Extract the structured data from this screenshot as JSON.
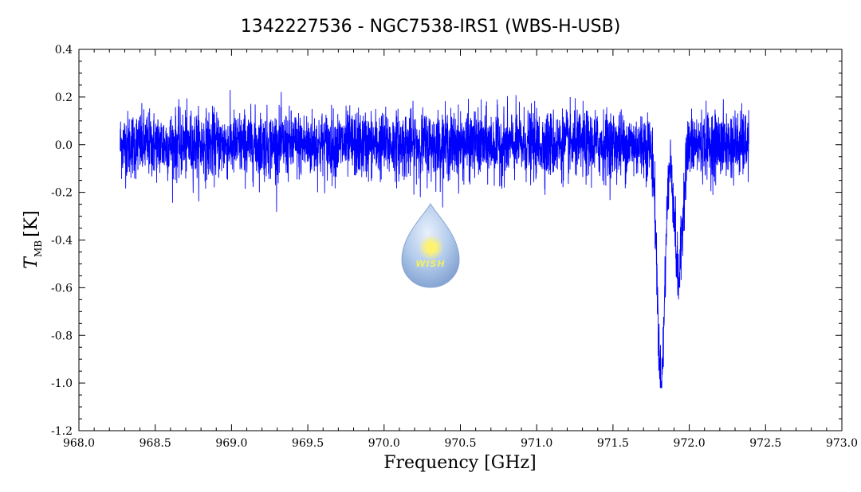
{
  "chart_data": {
    "type": "line",
    "title": "1342227536 - NGC7538-IRS1 (WBS-H-USB)",
    "xlabel": "Frequency [GHz]",
    "ylabel_main": "T",
    "ylabel_sub": "MB",
    "ylabel_unit": "[K]",
    "xlim": [
      968.0,
      973.0
    ],
    "ylim": [
      -1.2,
      0.4
    ],
    "x_ticks": [
      "968.0",
      "968.5",
      "969.0",
      "969.5",
      "970.0",
      "970.5",
      "971.0",
      "971.5",
      "972.0",
      "972.5",
      "973.0"
    ],
    "y_ticks": [
      "0.4",
      "0.2",
      "0.0",
      "-0.2",
      "-0.4",
      "-0.6",
      "-0.8",
      "-1.0",
      "-1.2"
    ],
    "grid": false,
    "series": [
      {
        "color": "#0000ff",
        "x_start": 968.27,
        "x_end": 972.39,
        "baseline": 0.0,
        "noise_rms": 0.07,
        "absorption_features": [
          {
            "center": 971.815,
            "depth": -1.0
          },
          {
            "center": 971.93,
            "depth": -0.56
          }
        ]
      }
    ]
  },
  "logo": {
    "text": "WISH",
    "colors": {
      "drop": "#a9c4e8",
      "drop_edge": "#7c9cc8",
      "star": "#fff36b"
    }
  }
}
